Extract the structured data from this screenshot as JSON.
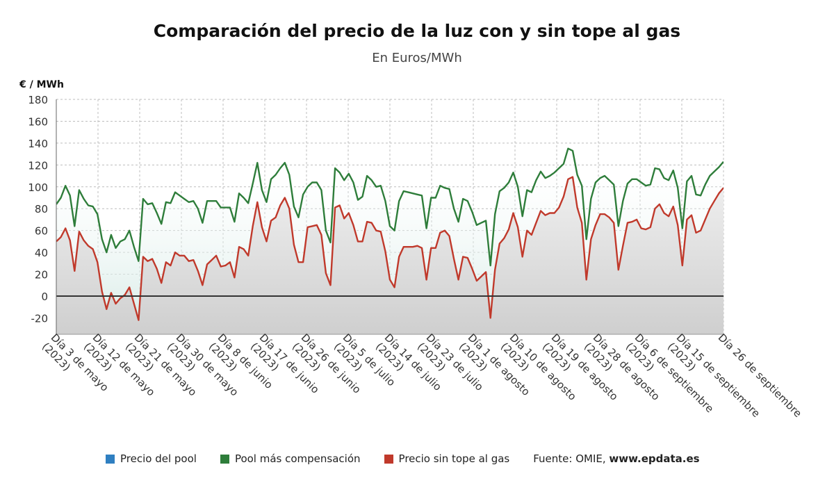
{
  "chart_data": {
    "type": "line",
    "title": "Comparación del precio de la luz con y sin tope al gas",
    "subtitle": "En Euros/MWh",
    "ylabel": "€ / MWh",
    "ylim": [
      -35,
      180
    ],
    "yticks": [
      -20,
      0,
      20,
      40,
      60,
      80,
      100,
      120,
      140,
      160,
      180
    ],
    "grid": true,
    "legend_position": "bottom",
    "xtick_labels": [
      "Día 3 de mayo (2023)",
      "Día 12 de mayo (2023)",
      "Día 21 de mayo (2023)",
      "Día 30 de mayo (2023)",
      "Día 8 de junio (2023)",
      "Día 17 de junio (2023)",
      "Día 26 de junio (2023)",
      "Día 5 de julio (2023)",
      "Día 14 de julio (2023)",
      "Día 23 de julio (2023)",
      "Día 1 de agosto (2023)",
      "Día 10 de agosto (2023)",
      "Día 19 de agosto (2023)",
      "Día 28 de agosto (2023)",
      "Día 6 de septiembre (2023)",
      "Día 15 de septiembre (2023)",
      "Día 26 de septiembre"
    ],
    "x_start": "2023-05-03",
    "x_end": "2023-09-26",
    "series": [
      {
        "name": "Precio del pool",
        "color": "#2f7fc1",
        "values": []
      },
      {
        "name": "Pool más compensación",
        "color": "#2e7d3a",
        "values": [
          84,
          90,
          101,
          92,
          64,
          97,
          89,
          83,
          82,
          75,
          52,
          40,
          56,
          44,
          50,
          52,
          60,
          45,
          32,
          89,
          84,
          85,
          76,
          66,
          86,
          85,
          95,
          92,
          89,
          86,
          87,
          80,
          67,
          87,
          87,
          87,
          81,
          81,
          81,
          68,
          94,
          90,
          85,
          103,
          122,
          97,
          86,
          107,
          111,
          117,
          122,
          111,
          82,
          72,
          93,
          100,
          104,
          104,
          97,
          60,
          49,
          117,
          113,
          106,
          112,
          104,
          88,
          91,
          110,
          106,
          100,
          101,
          87,
          64,
          60,
          87,
          96,
          95,
          94,
          93,
          92,
          62,
          90,
          90,
          101,
          99,
          98,
          80,
          68,
          89,
          87,
          77,
          65,
          67,
          69,
          28,
          75,
          96,
          99,
          104,
          113,
          100,
          73,
          97,
          95,
          106,
          114,
          108,
          110,
          113,
          117,
          121,
          135,
          133,
          111,
          101,
          52,
          89,
          104,
          108,
          110,
          106,
          102,
          64,
          87,
          103,
          107,
          107,
          104,
          101,
          102,
          117,
          116,
          108,
          106,
          115,
          99,
          62,
          105,
          110,
          93,
          92,
          102,
          110,
          114,
          118,
          123
        ]
      },
      {
        "name": "Precio sin tope al gas",
        "color": "#c0392b",
        "values": [
          50,
          54,
          62,
          51,
          23,
          59,
          51,
          46,
          43,
          31,
          4,
          -12,
          3,
          -7,
          -2,
          1,
          8,
          -7,
          -22,
          36,
          32,
          34,
          25,
          12,
          31,
          28,
          40,
          37,
          37,
          32,
          33,
          23,
          10,
          29,
          33,
          37,
          27,
          28,
          31,
          17,
          45,
          43,
          37,
          64,
          86,
          63,
          50,
          69,
          72,
          83,
          90,
          80,
          47,
          31,
          31,
          63,
          64,
          65,
          56,
          21,
          10,
          81,
          83,
          71,
          76,
          65,
          50,
          50,
          68,
          67,
          60,
          59,
          41,
          15,
          8,
          36,
          45,
          45,
          45,
          46,
          44,
          15,
          44,
          44,
          58,
          60,
          55,
          34,
          15,
          36,
          35,
          25,
          14,
          18,
          22,
          -20,
          24,
          48,
          53,
          61,
          76,
          63,
          36,
          60,
          56,
          67,
          78,
          74,
          76,
          76,
          81,
          91,
          107,
          109,
          81,
          67,
          15,
          52,
          65,
          75,
          75,
          72,
          67,
          24,
          46,
          67,
          68,
          70,
          62,
          61,
          63,
          80,
          84,
          76,
          73,
          82,
          65,
          28,
          70,
          74,
          58,
          60,
          70,
          80,
          87,
          94,
          99
        ]
      }
    ]
  },
  "legend": {
    "items": [
      {
        "label": "Precio del pool",
        "color": "#2f7fc1"
      },
      {
        "label": "Pool más compensación",
        "color": "#2e7d3a"
      },
      {
        "label": "Precio sin tope al gas",
        "color": "#c0392b"
      }
    ],
    "source_prefix": "Fuente: OMIE, ",
    "source_site": "www.epdata.es"
  }
}
